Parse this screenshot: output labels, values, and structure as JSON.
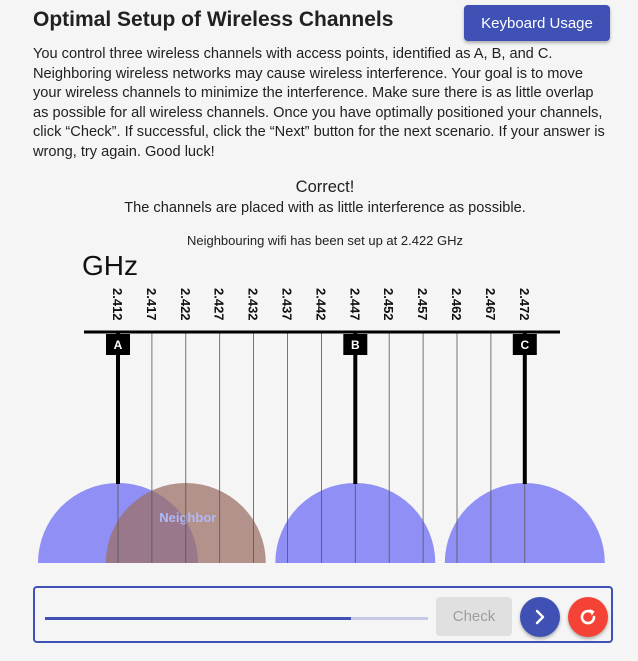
{
  "header": {
    "title": "Optimal Setup of Wireless Channels",
    "keyboard_button": "Keyboard Usage"
  },
  "instructions": "You control three wireless channels with access points, identified as A, B, and C. Neighboring wireless networks may cause wireless interference. Your goal is to move your wireless channels to minimize the interference. Make sure there is as little overlap as possible for all wireless channels. Once you have optimally positioned your channels, click “Check”. If successful, click the “Next” button for the next scenario. If your answer is wrong, try again. Good luck!",
  "feedback": {
    "title": "Correct!",
    "message": "The channels are placed with as little interference as possible."
  },
  "neighbour_note": "Neighbouring wifi has been set up at 2.422 GHz",
  "axis": {
    "unit": "GHz",
    "frequencies": [
      "2.412",
      "2.417",
      "2.422",
      "2.427",
      "2.432",
      "2.437",
      "2.442",
      "2.447",
      "2.452",
      "2.457",
      "2.462",
      "2.467",
      "2.472"
    ]
  },
  "channels": [
    {
      "id": "A",
      "frequency": "2.412"
    },
    {
      "id": "B",
      "frequency": "2.447"
    },
    {
      "id": "C",
      "frequency": "2.472"
    }
  ],
  "neighbour": {
    "label": "Neighbor",
    "frequency": "2.422"
  },
  "colors": {
    "primary": "#3f51b5",
    "channel_fill": "#7c7cf5",
    "neighbour_fill": "#9c7068",
    "danger": "#f44336"
  },
  "controls": {
    "check_label": "Check",
    "progress": 0.8,
    "next_icon": "chevron-right-icon",
    "reset_icon": "refresh-icon"
  }
}
